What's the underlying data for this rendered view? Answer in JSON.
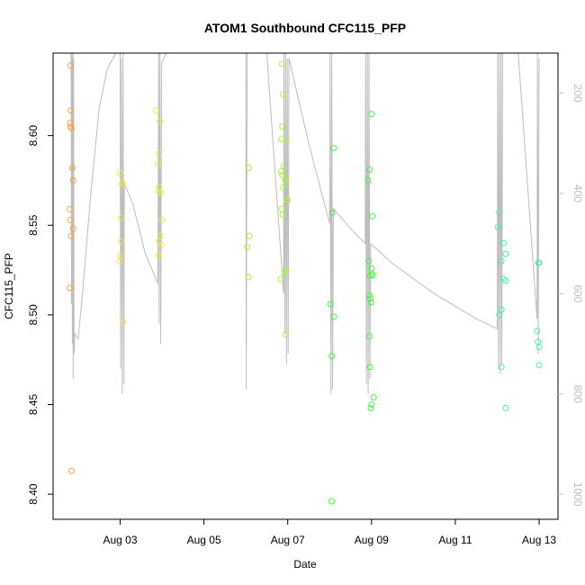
{
  "chart_data": {
    "type": "scatter",
    "title": "ATOM1 Southbound CFC115_PFP",
    "xlabel": "Date",
    "ylabel": "CFC115_PFP",
    "x_ticks": [
      "Aug 03",
      "Aug 05",
      "Aug 07",
      "Aug 09",
      "Aug 11",
      "Aug 13"
    ],
    "x_tick_values": [
      3,
      5,
      7,
      9,
      11,
      13
    ],
    "xlim": [
      1.4,
      13.45
    ],
    "y_ticks": [
      "8.40",
      "8.45",
      "8.50",
      "8.55",
      "8.60"
    ],
    "y_tick_values": [
      8.4,
      8.45,
      8.5,
      8.55,
      8.6
    ],
    "ylim": [
      8.386,
      8.646
    ],
    "y2_ticks": [
      "200",
      "400",
      "600",
      "800",
      "1000"
    ],
    "y2_tick_values": [
      200,
      400,
      600,
      800,
      1000
    ],
    "y2lim": [
      1050,
      120
    ],
    "colors": {
      "altitude_line": "#bdbdbd",
      "axis": "#000000",
      "right_axis": "#bdbdbd"
    },
    "altitude_trace": [
      [
        1.83,
        120
      ],
      [
        1.84,
        620
      ],
      [
        1.85,
        120
      ],
      [
        1.86,
        700
      ],
      [
        1.87,
        120
      ],
      [
        1.88,
        770
      ],
      [
        1.89,
        130
      ],
      [
        1.9,
        720
      ],
      [
        1.92,
        680
      ],
      [
        2.0,
        690
      ],
      [
        2.1,
        600
      ],
      [
        2.3,
        400
      ],
      [
        2.5,
        230
      ],
      [
        2.7,
        150
      ],
      [
        2.9,
        120
      ],
      [
        3.0,
        120
      ],
      [
        3.01,
        750
      ],
      [
        3.03,
        130
      ],
      [
        3.05,
        800
      ],
      [
        3.07,
        120
      ],
      [
        3.09,
        780
      ],
      [
        3.1,
        380
      ],
      [
        3.3,
        420
      ],
      [
        3.6,
        520
      ],
      [
        3.9,
        580
      ],
      [
        3.92,
        120
      ],
      [
        3.93,
        660
      ],
      [
        3.95,
        120
      ],
      [
        3.97,
        700
      ],
      [
        3.99,
        140
      ],
      [
        4.1,
        120
      ],
      [
        4.5,
        120
      ],
      [
        5.2,
        120
      ],
      [
        5.9,
        120
      ],
      [
        6.0,
        120
      ],
      [
        6.01,
        790
      ],
      [
        6.03,
        120
      ],
      [
        6.5,
        120
      ],
      [
        6.9,
        600
      ],
      [
        6.91,
        120
      ],
      [
        6.93,
        680
      ],
      [
        6.95,
        120
      ],
      [
        6.97,
        740
      ],
      [
        6.99,
        130
      ],
      [
        7.01,
        720
      ],
      [
        7.03,
        130
      ],
      [
        7.5,
        300
      ],
      [
        8.0,
        460
      ],
      [
        8.01,
        120
      ],
      [
        8.03,
        800
      ],
      [
        8.05,
        120
      ],
      [
        8.07,
        790
      ],
      [
        8.09,
        430
      ],
      [
        8.5,
        470
      ],
      [
        8.85,
        500
      ],
      [
        8.86,
        120
      ],
      [
        8.88,
        780
      ],
      [
        8.9,
        120
      ],
      [
        8.92,
        800
      ],
      [
        8.94,
        120
      ],
      [
        8.96,
        770
      ],
      [
        8.98,
        500
      ],
      [
        9.5,
        540
      ],
      [
        10.5,
        600
      ],
      [
        11.5,
        650
      ],
      [
        12.0,
        670
      ],
      [
        12.01,
        120
      ],
      [
        12.03,
        750
      ],
      [
        12.05,
        120
      ],
      [
        12.07,
        760
      ],
      [
        12.09,
        120
      ],
      [
        12.11,
        740
      ],
      [
        12.13,
        120
      ],
      [
        12.5,
        120
      ],
      [
        12.95,
        650
      ],
      [
        12.96,
        120
      ],
      [
        12.98,
        720
      ],
      [
        13.0,
        130
      ]
    ],
    "series": [
      {
        "color": "#f2a24a",
        "points": [
          [
            1.82,
            8.639
          ],
          [
            1.82,
            8.614
          ],
          [
            1.81,
            8.607
          ],
          [
            1.81,
            8.605
          ],
          [
            1.84,
            8.604
          ],
          [
            1.86,
            8.582
          ],
          [
            1.88,
            8.575
          ],
          [
            1.8,
            8.559
          ],
          [
            1.81,
            8.553
          ],
          [
            1.88,
            8.548
          ],
          [
            1.83,
            8.544
          ],
          [
            1.8,
            8.515
          ],
          [
            1.84,
            8.413
          ]
        ]
      },
      {
        "color": "#f0e34a",
        "points": [
          [
            3.0,
            8.579
          ],
          [
            3.06,
            8.574
          ],
          [
            3.04,
            8.573
          ],
          [
            3.02,
            8.554
          ],
          [
            3.03,
            8.541
          ],
          [
            3.01,
            8.533
          ],
          [
            3.0,
            8.53
          ],
          [
            3.07,
            8.496
          ],
          [
            3.86,
            8.614
          ],
          [
            3.95,
            8.608
          ],
          [
            3.93,
            8.59
          ],
          [
            3.9,
            8.584
          ],
          [
            3.93,
            8.571
          ],
          [
            3.92,
            8.569
          ],
          [
            3.97,
            8.568
          ],
          [
            3.99,
            8.553
          ],
          [
            3.96,
            8.544
          ],
          [
            3.93,
            8.541
          ],
          [
            3.98,
            8.539
          ],
          [
            3.92,
            8.533
          ]
        ]
      },
      {
        "color": "#a9f04a",
        "points": [
          [
            6.07,
            8.582
          ],
          [
            6.09,
            8.544
          ],
          [
            6.03,
            8.538
          ],
          [
            6.06,
            8.521
          ],
          [
            6.86,
            8.64
          ],
          [
            6.89,
            8.623
          ],
          [
            6.87,
            8.605
          ],
          [
            6.85,
            8.598
          ],
          [
            6.97,
            8.597
          ],
          [
            6.9,
            8.583
          ],
          [
            6.84,
            8.58
          ],
          [
            6.87,
            8.578
          ],
          [
            6.96,
            8.576
          ],
          [
            6.94,
            8.575
          ],
          [
            6.89,
            8.571
          ],
          [
            6.99,
            8.564
          ],
          [
            6.97,
            8.564
          ],
          [
            6.86,
            8.559
          ],
          [
            6.88,
            8.556
          ],
          [
            6.95,
            8.525
          ],
          [
            6.92,
            8.524
          ],
          [
            6.83,
            8.52
          ],
          [
            6.95,
            8.489
          ]
        ]
      },
      {
        "color": "#4af04a",
        "points": [
          [
            8.1,
            8.593
          ],
          [
            8.06,
            8.557
          ],
          [
            8.02,
            8.506
          ],
          [
            8.1,
            8.499
          ],
          [
            8.05,
            8.477
          ],
          [
            8.05,
            8.396
          ],
          [
            9.0,
            8.612
          ],
          [
            8.95,
            8.581
          ],
          [
            8.92,
            8.575
          ],
          [
            9.02,
            8.555
          ],
          [
            8.93,
            8.53
          ],
          [
            9.0,
            8.526
          ],
          [
            9.01,
            8.523
          ],
          [
            8.97,
            8.522
          ],
          [
            9.03,
            8.522
          ],
          [
            8.95,
            8.511
          ],
          [
            8.97,
            8.509
          ],
          [
            8.99,
            8.507
          ],
          [
            8.95,
            8.488
          ],
          [
            8.96,
            8.471
          ],
          [
            9.05,
            8.454
          ],
          [
            9.0,
            8.45
          ],
          [
            8.98,
            8.448
          ]
        ]
      },
      {
        "color": "#4af0a4",
        "points": [
          [
            12.05,
            8.557
          ],
          [
            12.02,
            8.549
          ],
          [
            12.15,
            8.54
          ],
          [
            12.2,
            8.534
          ],
          [
            12.1,
            8.53
          ],
          [
            12.15,
            8.52
          ],
          [
            12.2,
            8.519
          ],
          [
            12.1,
            8.503
          ],
          [
            12.05,
            8.5
          ],
          [
            12.1,
            8.471
          ],
          [
            12.2,
            8.448
          ],
          [
            12.98,
            8.529
          ],
          [
            13.0,
            8.529
          ],
          [
            12.95,
            8.491
          ],
          [
            12.97,
            8.485
          ],
          [
            13.0,
            8.482
          ],
          [
            13.0,
            8.472
          ]
        ]
      }
    ]
  }
}
